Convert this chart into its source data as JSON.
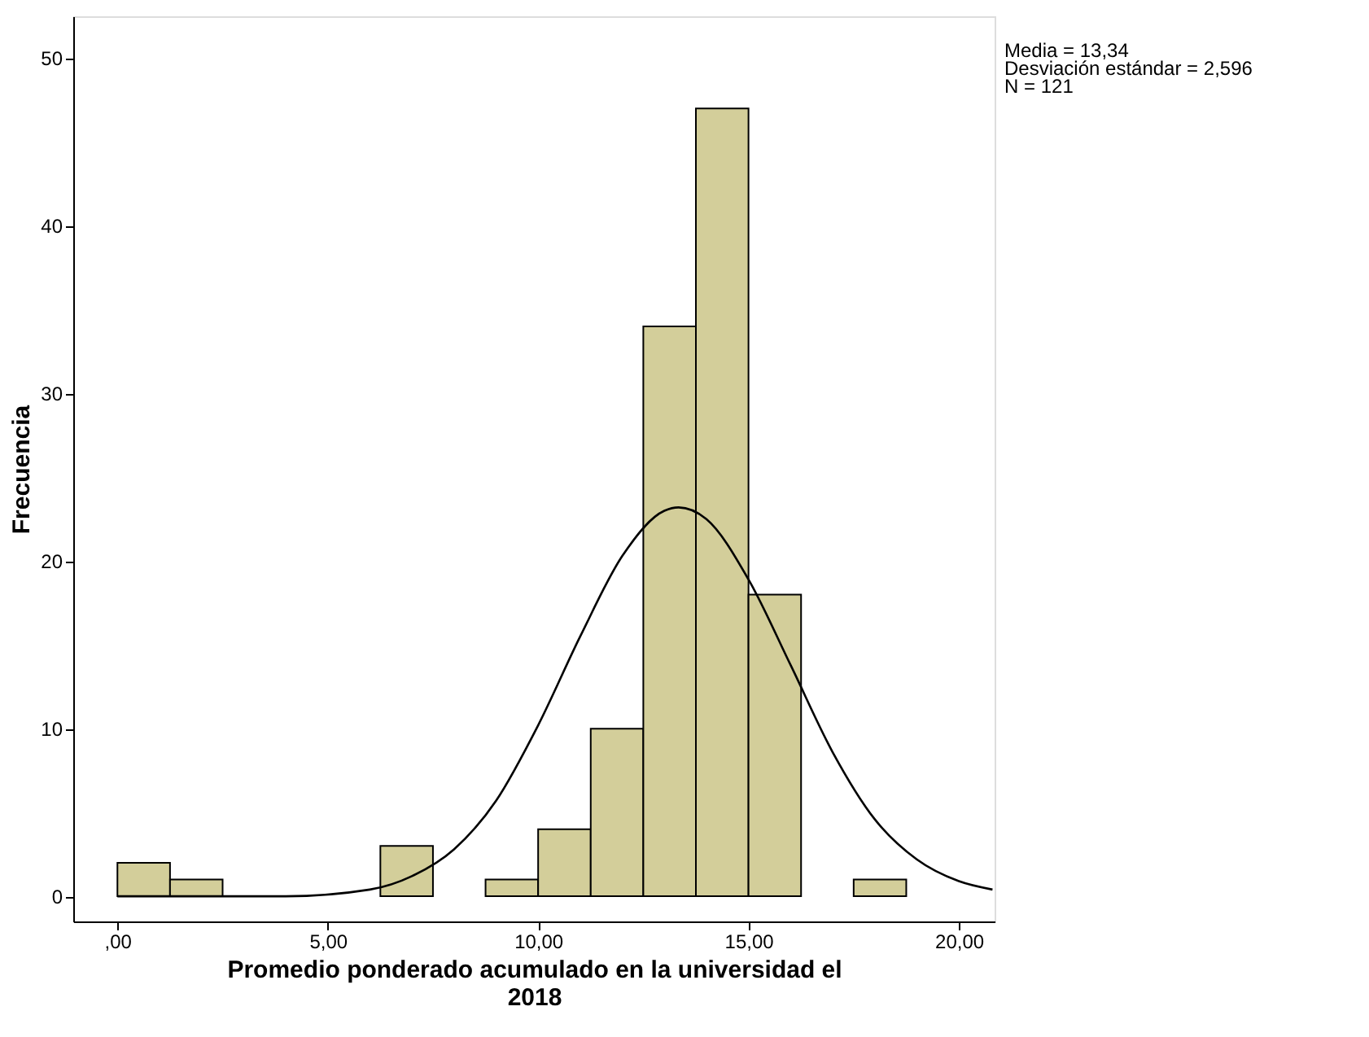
{
  "chart_data": {
    "type": "histogram",
    "xlabel": "Promedio ponderado acumulado en la universidad el 2018",
    "ylabel": "Frecuencia",
    "bins": [
      0,
      1.25,
      2.5,
      3.75,
      5,
      6.25,
      7.5,
      8.75,
      10,
      11.25,
      12.5,
      13.75,
      15,
      16.25,
      17.5,
      18.75
    ],
    "values": [
      2,
      1,
      0,
      0,
      0,
      3,
      0,
      1,
      4,
      10,
      34,
      47,
      18,
      0,
      1
    ],
    "color": "#d3ce9a",
    "series": [
      {
        "type": "line",
        "color": "#000000",
        "x": [
          0,
          2,
          4,
          6,
          7,
          8,
          9,
          10,
          11,
          12,
          13,
          13.34,
          14,
          15,
          16,
          17,
          18,
          19,
          20,
          20.8
        ],
        "values": [
          0,
          0,
          0,
          0.4,
          1.2,
          2.8,
          5.7,
          10.2,
          15.5,
          20.3,
          23,
          23.2,
          22.5,
          18.9,
          13.8,
          8.6,
          4.6,
          2.2,
          0.9,
          0.4
        ]
      }
    ],
    "xlim": [
      -1.05,
      20.85
    ],
    "ylim": [
      -1.5,
      52.5
    ],
    "xticks": [
      {
        "value": 0,
        "label": ",00"
      },
      {
        "value": 5,
        "label": "5,00"
      },
      {
        "value": 10,
        "label": "10,00"
      },
      {
        "value": 15,
        "label": "15,00"
      },
      {
        "value": 20,
        "label": "20,00"
      }
    ],
    "yticks": [
      0,
      10,
      20,
      30,
      40,
      50
    ],
    "grid": false,
    "annotations": [
      "Media = 13,34",
      "Desviación estándar = 2,596",
      "N = 121"
    ]
  }
}
